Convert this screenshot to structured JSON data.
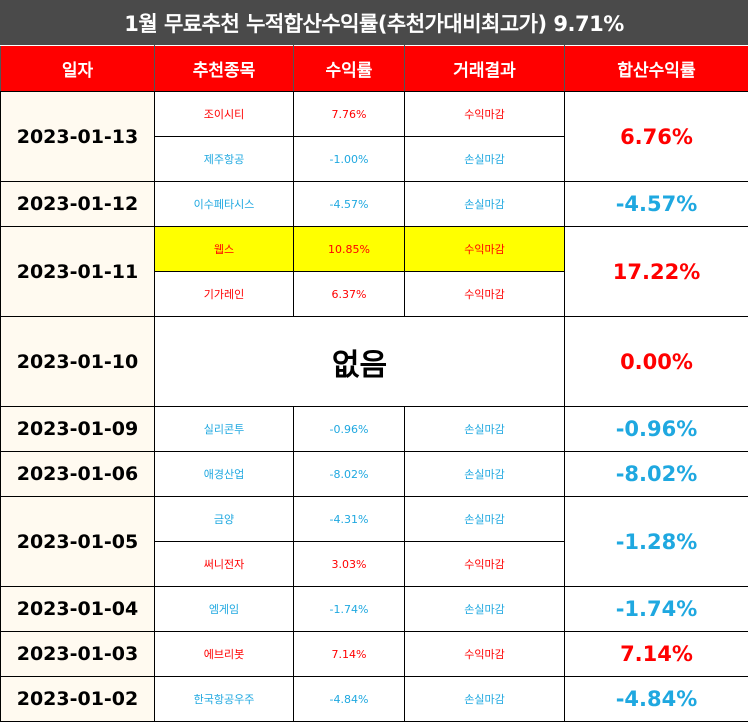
{
  "title": "1월 무료추천 누적합산수익률(추천가대비최고가) 9.71%",
  "headers": [
    "일자",
    "추천종목",
    "수익률",
    "거래결과",
    "합산수익률"
  ],
  "no_recommendation_label": "없음",
  "colors": {
    "gain": "#ff0000",
    "loss": "#1fa8e0",
    "header_bg": "#ff0000",
    "title_bg": "#4a4a4a",
    "highlight": "#ffff00"
  },
  "days": [
    {
      "date": "2023-01-13",
      "total": "6.76%",
      "total_type": "gain",
      "stocks": [
        {
          "name": "조이시티",
          "rate": "7.76%",
          "result": "수익마감",
          "type": "gain",
          "highlight": false
        },
        {
          "name": "제주항공",
          "rate": "-1.00%",
          "result": "손실마감",
          "type": "loss",
          "highlight": false
        }
      ]
    },
    {
      "date": "2023-01-12",
      "total": "-4.57%",
      "total_type": "loss",
      "stocks": [
        {
          "name": "이수페타시스",
          "rate": "-4.57%",
          "result": "손실마감",
          "type": "loss",
          "highlight": false
        }
      ]
    },
    {
      "date": "2023-01-11",
      "total": "17.22%",
      "total_type": "gain",
      "stocks": [
        {
          "name": "웹스",
          "rate": "10.85%",
          "result": "수익마감",
          "type": "gain",
          "highlight": true
        },
        {
          "name": "기가레인",
          "rate": "6.37%",
          "result": "수익마감",
          "type": "gain",
          "highlight": false
        }
      ]
    },
    {
      "date": "2023-01-10",
      "total": "0.00%",
      "total_type": "zero",
      "stocks": []
    },
    {
      "date": "2023-01-09",
      "total": "-0.96%",
      "total_type": "loss",
      "stocks": [
        {
          "name": "실리콘투",
          "rate": "-0.96%",
          "result": "손실마감",
          "type": "loss",
          "highlight": false
        }
      ]
    },
    {
      "date": "2023-01-06",
      "total": "-8.02%",
      "total_type": "loss",
      "stocks": [
        {
          "name": "애경산업",
          "rate": "-8.02%",
          "result": "손실마감",
          "type": "loss",
          "highlight": false
        }
      ]
    },
    {
      "date": "2023-01-05",
      "total": "-1.28%",
      "total_type": "loss",
      "stocks": [
        {
          "name": "금양",
          "rate": "-4.31%",
          "result": "손실마감",
          "type": "loss",
          "highlight": false
        },
        {
          "name": "써니전자",
          "rate": "3.03%",
          "result": "수익마감",
          "type": "gain",
          "highlight": false
        }
      ]
    },
    {
      "date": "2023-01-04",
      "total": "-1.74%",
      "total_type": "loss",
      "stocks": [
        {
          "name": "엠게임",
          "rate": "-1.74%",
          "result": "손실마감",
          "type": "loss",
          "highlight": false
        }
      ]
    },
    {
      "date": "2023-01-03",
      "total": "7.14%",
      "total_type": "gain",
      "stocks": [
        {
          "name": "에브리봇",
          "rate": "7.14%",
          "result": "수익마감",
          "type": "gain",
          "highlight": false
        }
      ]
    },
    {
      "date": "2023-01-02",
      "total": "-4.84%",
      "total_type": "loss",
      "stocks": [
        {
          "name": "한국항공우주",
          "rate": "-4.84%",
          "result": "손실마감",
          "type": "loss",
          "highlight": false
        }
      ]
    }
  ]
}
